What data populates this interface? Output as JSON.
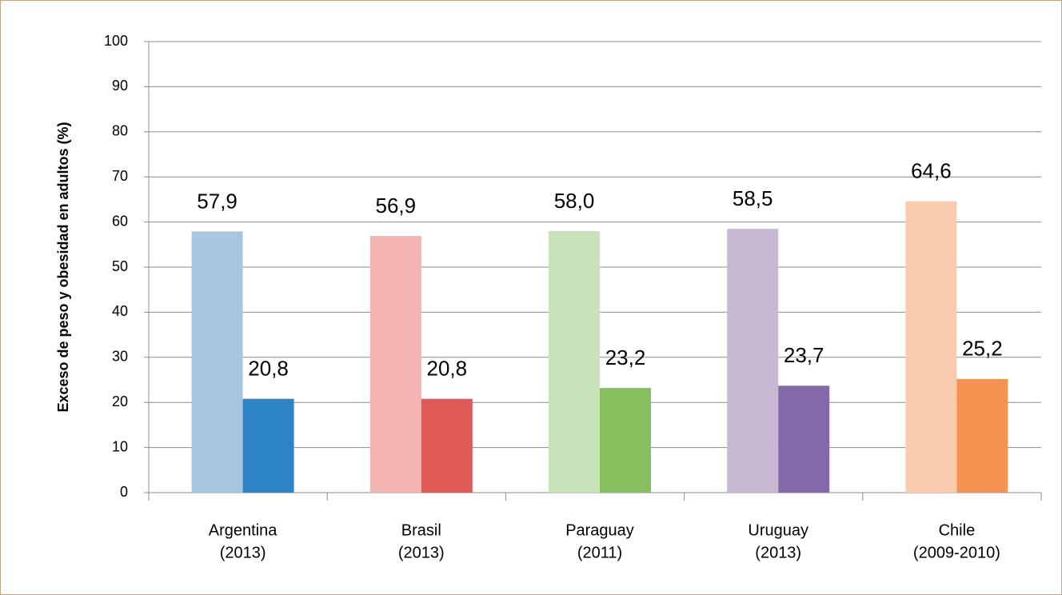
{
  "chart_data": {
    "type": "bar",
    "y_label": "Exceso de peso y obesidad en adultos (%)",
    "categories": [
      [
        "Argentina",
        "(2013)"
      ],
      [
        "Brasil",
        "(2013)"
      ],
      [
        "Paraguay",
        "(2011)"
      ],
      [
        "Uruguay",
        "(2013)"
      ],
      [
        "Chile",
        "(2009-2010)"
      ]
    ],
    "series": [
      {
        "colors": [
          "#a6c6e0",
          "#f4b4b2",
          "#c8e3b9",
          "#c8b8d4",
          "#f9cbac"
        ],
        "values": [
          57.9,
          56.9,
          58.0,
          58.5,
          64.6
        ],
        "value_labels": [
          "57,9",
          "56,9",
          "58,0",
          "58,5",
          "64,6"
        ]
      },
      {
        "colors": [
          "#2b84c4",
          "#e05a58",
          "#85bf5e",
          "#8469aa",
          "#f59352"
        ],
        "values": [
          20.8,
          20.8,
          23.2,
          23.7,
          25.2
        ],
        "value_labels": [
          "20,8",
          "20,8",
          "23,2",
          "23,7",
          "25,2"
        ]
      }
    ],
    "ylim": [
      0,
      100
    ],
    "yticks": [
      0,
      10,
      20,
      30,
      40,
      50,
      60,
      70,
      80,
      90,
      100
    ],
    "grid": true
  }
}
